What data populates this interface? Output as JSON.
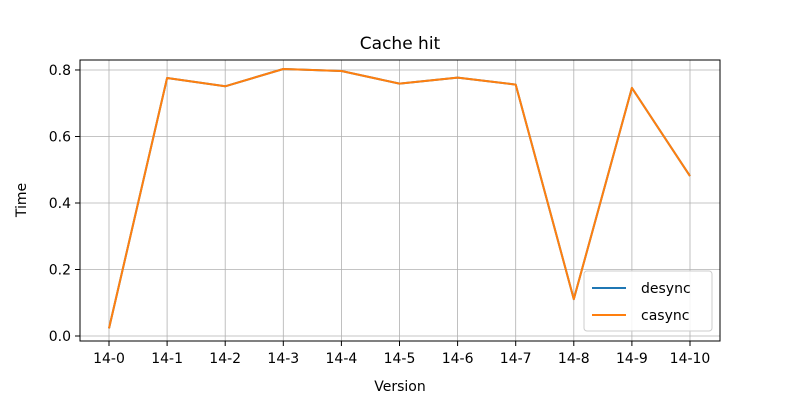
{
  "chart_data": {
    "type": "line",
    "title": "Cache hit",
    "xlabel": "Version",
    "ylabel": "Time",
    "categories": [
      "14-0",
      "14-1",
      "14-2",
      "14-3",
      "14-4",
      "14-5",
      "14-6",
      "14-7",
      "14-8",
      "14-9",
      "14-10"
    ],
    "ylim": [
      -0.015,
      0.83
    ],
    "yticks": [
      "0.0",
      "0.2",
      "0.4",
      "0.6",
      "0.8"
    ],
    "grid": true,
    "legend_position": "lower-right",
    "series": [
      {
        "name": "desync",
        "color": "#1f77b4",
        "values": [
          0.023,
          0.776,
          0.751,
          0.803,
          0.797,
          0.759,
          0.777,
          0.756,
          0.111,
          0.746,
          0.481
        ]
      },
      {
        "name": "casync",
        "color": "#ff7f0e",
        "values": [
          0.023,
          0.776,
          0.751,
          0.803,
          0.797,
          0.759,
          0.777,
          0.756,
          0.111,
          0.746,
          0.481
        ]
      }
    ]
  }
}
